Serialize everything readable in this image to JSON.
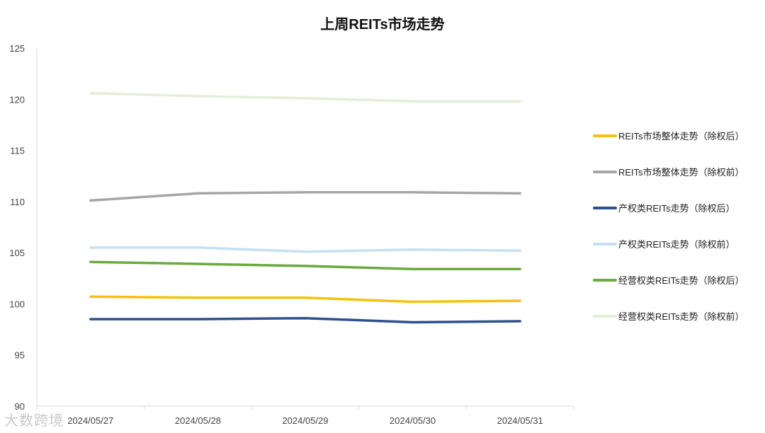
{
  "chart_data": {
    "type": "line",
    "title": "上周REITs市场走势",
    "categories": [
      "2024/05/27",
      "2024/05/28",
      "2024/05/29",
      "2024/05/30",
      "2024/05/31"
    ],
    "ylim": [
      90,
      125
    ],
    "yticks": [
      90,
      95,
      100,
      105,
      110,
      115,
      120,
      125
    ],
    "grid": false,
    "legend_position": "right",
    "series": [
      {
        "name": "REITs市场整体走势（除权后）",
        "color": "#f5c10e",
        "values": [
          100.7,
          100.6,
          100.6,
          100.2,
          100.3
        ]
      },
      {
        "name": "REITs市场整体走势（除权前）",
        "color": "#a6a6a6",
        "values": [
          110.1,
          110.8,
          110.9,
          110.9,
          110.8
        ]
      },
      {
        "name": "产权类REITs走势（除权后）",
        "color": "#2f4f8f",
        "values": [
          98.5,
          98.5,
          98.6,
          98.2,
          98.3
        ]
      },
      {
        "name": "产权类REITs走势（除权前）",
        "color": "#c5dff3",
        "values": [
          105.5,
          105.5,
          105.1,
          105.3,
          105.2
        ]
      },
      {
        "name": "经营权类REITs走势（除权后）",
        "color": "#6aaa3e",
        "values": [
          104.1,
          103.9,
          103.7,
          103.4,
          103.4
        ]
      },
      {
        "name": "经营权类REITs走势（除权前）",
        "color": "#e3efd9",
        "values": [
          120.6,
          120.3,
          120.1,
          119.8,
          119.8
        ]
      }
    ]
  },
  "watermark": "大数跨境"
}
